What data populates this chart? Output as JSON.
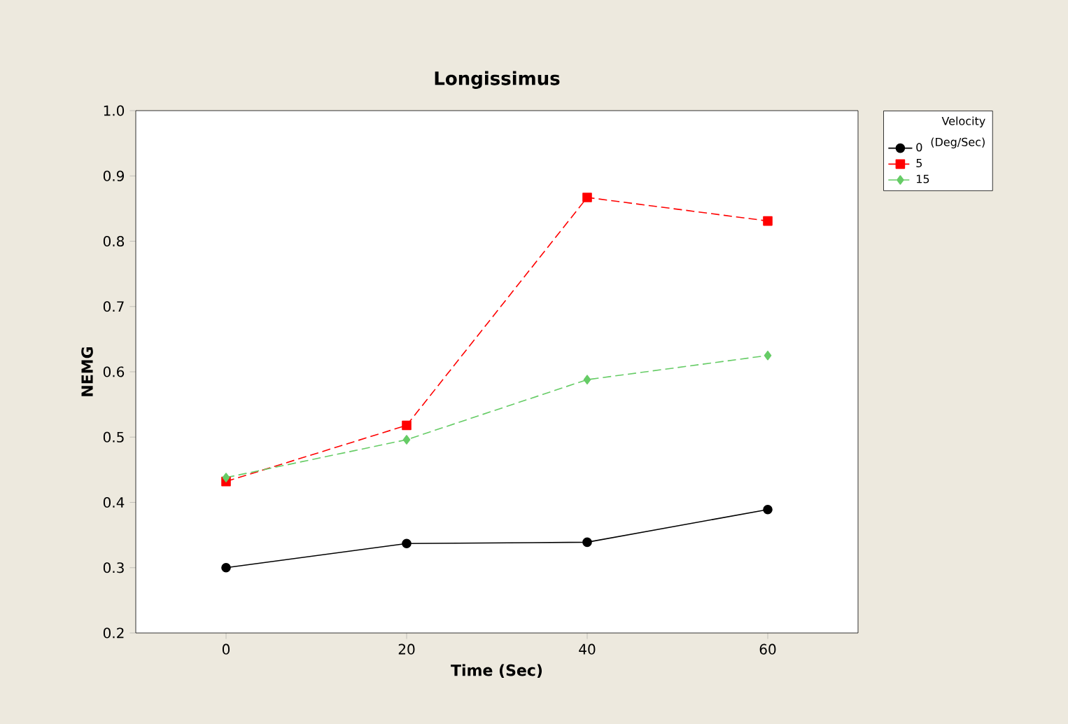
{
  "chart_data": {
    "type": "line",
    "title": "Longissimus",
    "xlabel": "Time (Sec)",
    "ylabel": "NEMG",
    "legend_title": "Velocity (Deg/Sec)",
    "x": [
      0,
      20,
      40,
      60
    ],
    "series": [
      {
        "name": "0",
        "color": "#000000",
        "marker": "circle",
        "line_style": "solid",
        "values": [
          0.3,
          0.337,
          0.339,
          0.389
        ]
      },
      {
        "name": "5",
        "color": "#ff0000",
        "marker": "square",
        "line_style": "dashed",
        "values": [
          0.432,
          0.518,
          0.867,
          0.831
        ]
      },
      {
        "name": "15",
        "color": "#66cc66",
        "marker": "diamond",
        "line_style": "dashed",
        "values": [
          0.438,
          0.496,
          0.588,
          0.625
        ]
      }
    ],
    "xlim": [
      -10,
      70
    ],
    "ylim": [
      0.2,
      1.0
    ],
    "xticks": [
      0,
      20,
      40,
      60
    ],
    "yticks": [
      {
        "value": 0.2,
        "label": "0.2"
      },
      {
        "value": 0.3,
        "label": "0.3"
      },
      {
        "value": 0.4,
        "label": "0.4"
      },
      {
        "value": 0.5,
        "label": "0.5"
      },
      {
        "value": 0.6,
        "label": "0.6"
      },
      {
        "value": 0.7,
        "label": "0.7"
      },
      {
        "value": 0.8,
        "label": "0.8"
      },
      {
        "value": 0.9,
        "label": "0.9"
      },
      {
        "value": 1.0,
        "label": "1.0"
      }
    ],
    "legend": "right",
    "grid": false
  }
}
